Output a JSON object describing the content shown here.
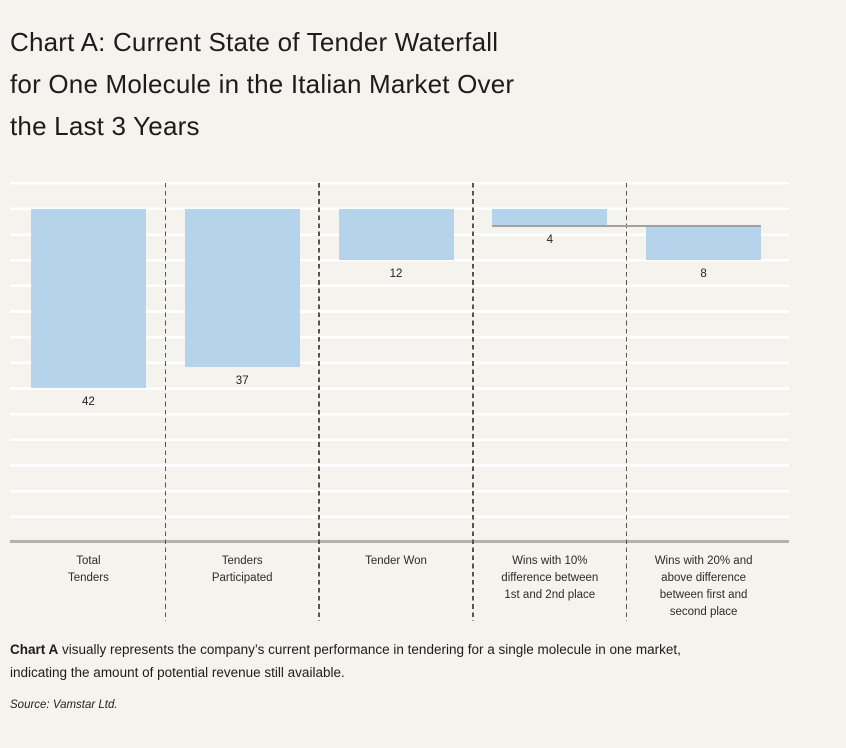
{
  "page": {
    "background": "#f5f3ee"
  },
  "title": {
    "lines": [
      "Chart A: Current State of Tender Waterfall",
      "for One Molecule in the Italian Market Over",
      "the Last 3 Years"
    ]
  },
  "chart_data": {
    "type": "bar",
    "subtype": "waterfall",
    "title": "Chart A: Current State of Tender Waterfall for One Molecule in the Italian Market Over the Last 3 Years",
    "orientation": "bars-hang-from-top-baseline",
    "categories": [
      [
        "Total",
        "Tenders"
      ],
      [
        "Tenders",
        "Participated"
      ],
      [
        "Tender Won"
      ],
      [
        "Wins with 10%",
        "difference between",
        "1st and 2nd place"
      ],
      [
        "Wins with 20% and",
        "above difference",
        "between first and",
        "second place"
      ]
    ],
    "values": [
      42,
      37,
      12,
      4,
      8
    ],
    "offsets": [
      0,
      0,
      0,
      0,
      4
    ],
    "value_labels": [
      "42",
      "37",
      "12",
      "4",
      "8"
    ],
    "grid": true,
    "gridline_interval": 6,
    "legend": false,
    "colors": {
      "bar": "#b5d3eb",
      "gridline": "#ffffff",
      "axis": "#b1b1af",
      "separator": "#56544e",
      "connector": "#a6a19b",
      "background": "#f5f3ee",
      "text": "#1c1c1a"
    }
  },
  "footer": {
    "bold": "Chart A",
    "text": " visually represents the company’s current performance in tendering for a single molecule in one market,\nindicating the amount of potential revenue still available."
  },
  "source": {
    "text": "Source: Vamstar Ltd."
  }
}
